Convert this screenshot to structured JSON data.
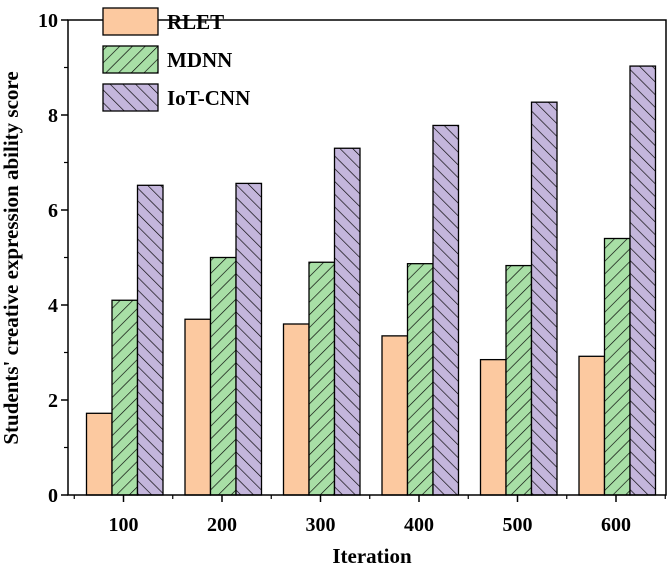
{
  "chart_data": {
    "type": "bar",
    "xlabel": "Iteration",
    "ylabel": "Students' creative expression ability score",
    "ylim": [
      0,
      10
    ],
    "yticks": [
      "0",
      "2",
      "4",
      "6",
      "8",
      "10"
    ],
    "categories": [
      "100",
      "200",
      "300",
      "400",
      "500",
      "600"
    ],
    "legend_position": "top-left",
    "grid": false,
    "series": [
      {
        "name": "RLET",
        "values": [
          1.72,
          3.7,
          3.6,
          3.35,
          2.85,
          2.92
        ],
        "color": "#fcc9a0",
        "pattern": "none"
      },
      {
        "name": "MDNN",
        "values": [
          4.1,
          5.0,
          4.9,
          4.87,
          4.83,
          5.4
        ],
        "color": "#a8dfa6",
        "pattern": "forward-hatch"
      },
      {
        "name": "IoT-CNN",
        "values": [
          6.52,
          6.56,
          7.3,
          7.78,
          8.27,
          9.03
        ],
        "color": "#c4b6dc",
        "pattern": "back-hatch"
      }
    ]
  }
}
